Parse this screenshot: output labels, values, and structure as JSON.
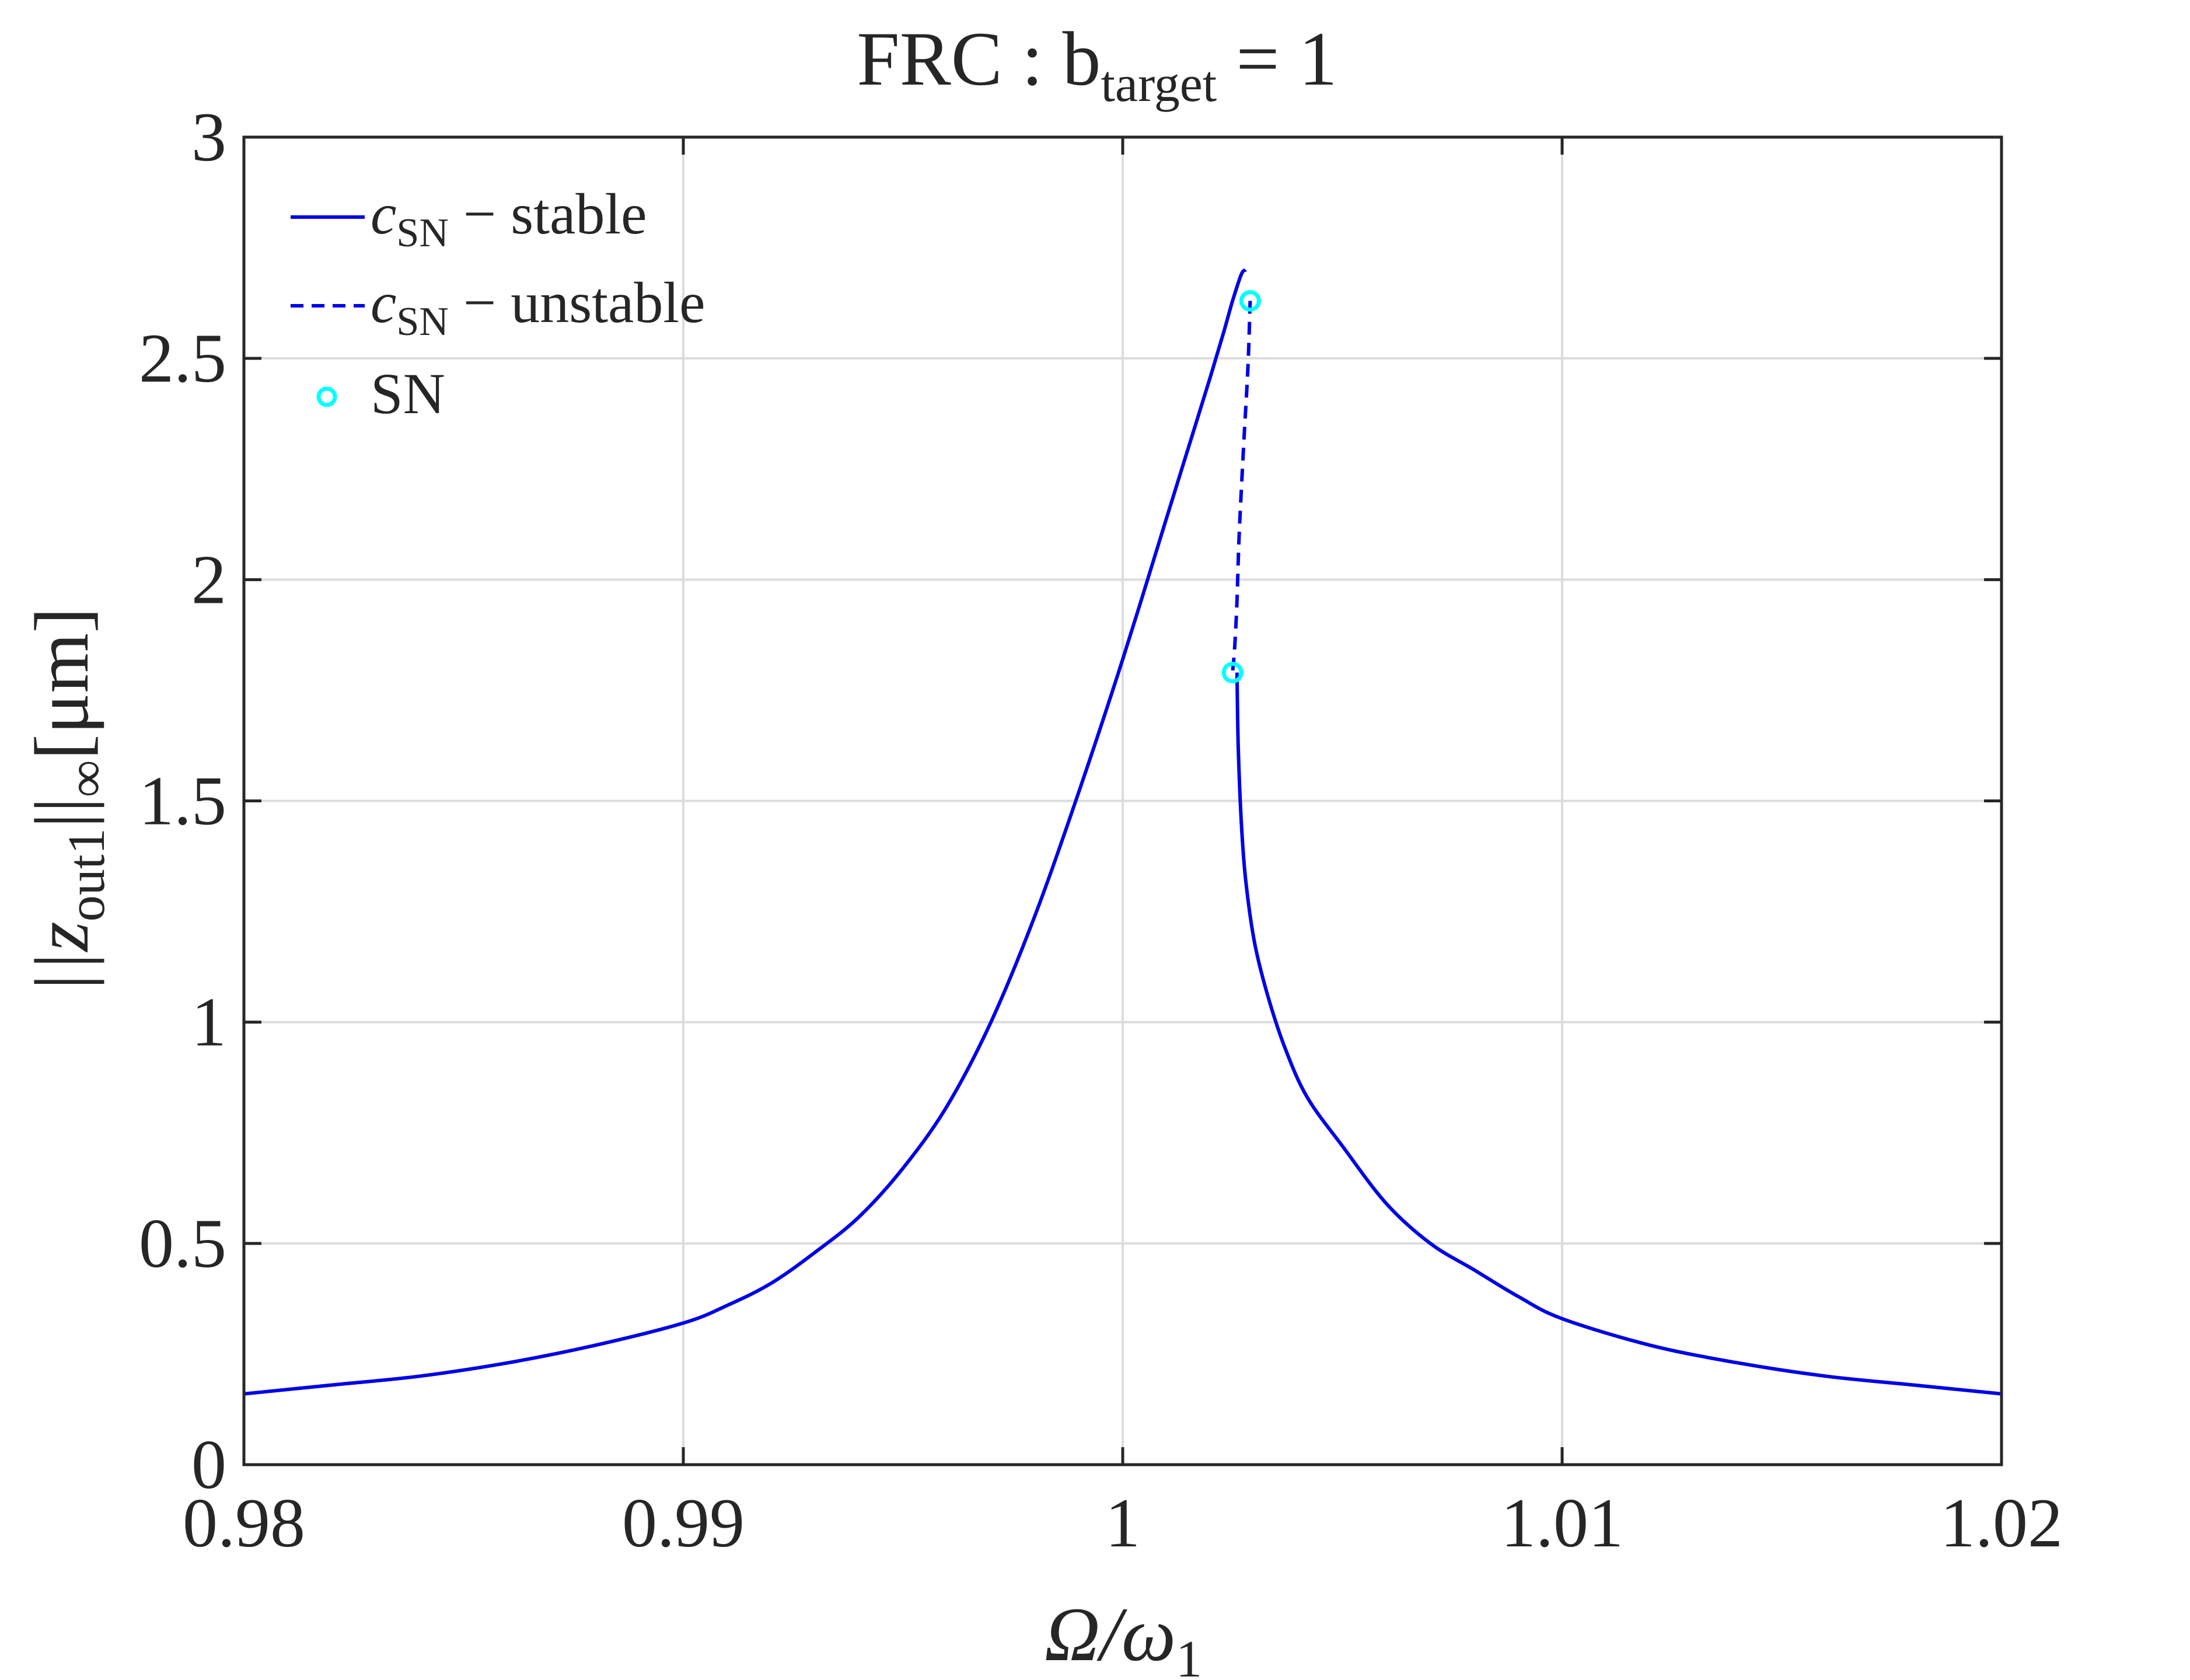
{
  "chart_data": {
    "type": "line",
    "title": "FRC : b",
    "title_sub": "target",
    "title_tail": " = 1",
    "xlabel": "Ω/ω",
    "xlabel_sub": "1",
    "ylabel_pre": "||z",
    "ylabel_sub1": "out1",
    "ylabel_mid": "||",
    "ylabel_sub2": "∞",
    "ylabel_post": "[μm]",
    "xlim": [
      0.98,
      1.02
    ],
    "ylim": [
      0,
      3
    ],
    "xticks": [
      0.98,
      0.99,
      1.0,
      1.01,
      1.02
    ],
    "xtick_labels": [
      "0.98",
      "0.99",
      "1",
      "1.01",
      "1.02"
    ],
    "yticks": [
      0,
      0.5,
      1,
      1.5,
      2,
      2.5,
      3
    ],
    "ytick_labels": [
      "0",
      "0.5",
      "1",
      "1.5",
      "2",
      "2.5",
      "3"
    ],
    "grid": true,
    "legend_position": "top-left",
    "legend": [
      {
        "symbol": "solid-line",
        "name_main": "c",
        "name_sub": "SN",
        "name_tail": " − stable"
      },
      {
        "symbol": "dashed-line",
        "name_main": "c",
        "name_sub": "SN",
        "name_tail": " − unstable"
      },
      {
        "symbol": "circle-marker",
        "name_main": "SN",
        "name_sub": "",
        "name_tail": ""
      }
    ],
    "series": [
      {
        "style": "solid",
        "color": "#0000e6",
        "x": [
          0.98,
          0.982,
          0.984,
          0.986,
          0.988,
          0.99,
          0.991,
          0.992,
          0.993,
          0.994,
          0.995,
          0.996,
          0.997,
          0.998,
          0.999,
          1.0,
          1.001,
          1.0015,
          1.002,
          1.0023,
          1.0025,
          1.0027,
          1.0028
        ],
        "y": [
          0.16,
          0.18,
          0.2,
          0.23,
          0.27,
          0.32,
          0.36,
          0.41,
          0.48,
          0.56,
          0.67,
          0.81,
          1.0,
          1.24,
          1.52,
          1.82,
          2.14,
          2.3,
          2.46,
          2.56,
          2.63,
          2.69,
          2.7
        ]
      },
      {
        "style": "dashed",
        "color": "#0000e6",
        "x": [
          1.0029,
          1.00285,
          1.00275,
          1.00265,
          1.0026,
          1.00255,
          1.0025
        ],
        "y": [
          2.63,
          2.48,
          2.3,
          2.1,
          1.95,
          1.85,
          1.79
        ]
      },
      {
        "style": "solid",
        "color": "#0000e6",
        "x": [
          1.0026,
          1.00263,
          1.0027,
          1.0028,
          1.003,
          1.0033,
          1.0037,
          1.0042,
          1.005,
          1.006,
          1.007,
          1.008,
          1.009,
          1.01,
          1.012,
          1.014,
          1.016,
          1.018,
          1.02
        ],
        "y": [
          1.79,
          1.62,
          1.45,
          1.32,
          1.18,
          1.06,
          0.94,
          0.83,
          0.72,
          0.59,
          0.5,
          0.44,
          0.38,
          0.33,
          0.27,
          0.23,
          0.2,
          0.18,
          0.16
        ]
      }
    ],
    "sn_points": {
      "color": "#00ffff",
      "x": [
        1.0025,
        1.0029
      ],
      "y": [
        1.79,
        2.63
      ]
    }
  }
}
